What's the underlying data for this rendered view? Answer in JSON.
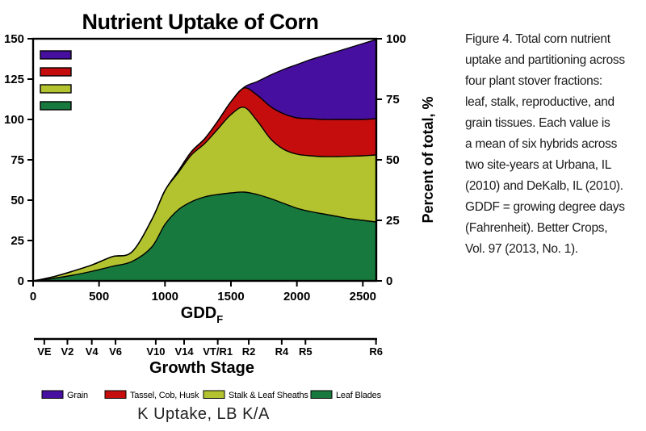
{
  "caption": {
    "text": "Figure 4. Total corn nutrient\nuptake and partitioning across\nfour plant stover fractions:\nleaf, stalk, reproductive, and\ngrain tissues.  Each value is\na mean of six hybrids across\ntwo site-years at Urbana, IL\n(2010) and DeKalb, IL (2010).\nGDDF = growing degree days\n(Fahrenheit).  Better Crops,\nVol. 97 (2013, No. 1)."
  },
  "chart_data": {
    "type": "area",
    "stacked": true,
    "title": "Nutrient Uptake of Corn",
    "xlabel": "GDD",
    "xlabel_sub": "F",
    "ylabel_right": "Percent of total, %",
    "bottom_label": "K Uptake, LB K/A",
    "xlim": [
      0,
      2600
    ],
    "ylim_left": [
      0,
      150
    ],
    "ylim_right": [
      0,
      100
    ],
    "x_ticks": [
      0,
      500,
      1000,
      1500,
      2000,
      2500
    ],
    "y_ticks_left": [
      0,
      25,
      50,
      75,
      100,
      125,
      150
    ],
    "y_ticks_right": [
      0,
      25,
      50,
      75,
      100
    ],
    "x": [
      0,
      150,
      300,
      450,
      600,
      750,
      900,
      1000,
      1100,
      1200,
      1300,
      1400,
      1500,
      1600,
      1700,
      1800,
      1900,
      2000,
      2100,
      2200,
      2300,
      2400,
      2500,
      2600
    ],
    "series": [
      {
        "name": "Leaf Blades",
        "color": "#17793e",
        "values": [
          0,
          1.5,
          3.5,
          6,
          9,
          12,
          21,
          35,
          44,
          49,
          52,
          53.5,
          54.5,
          55,
          53.5,
          51,
          48,
          45,
          43,
          41.5,
          40,
          38.5,
          37.5,
          36.5
        ]
      },
      {
        "name": "Stalk & Leaf Sheaths",
        "color": "#b2c32f",
        "values": [
          0,
          1,
          2.5,
          4,
          6,
          6,
          17,
          21,
          23,
          29,
          33,
          40.5,
          48.5,
          52.5,
          45.5,
          37,
          33.5,
          33.5,
          34.5,
          35.5,
          37,
          38.7,
          40,
          41.5
        ]
      },
      {
        "name": "Tassel, Cob, Husk",
        "color": "#c50d0d",
        "values": [
          0,
          0,
          0,
          0,
          0,
          0,
          0,
          0,
          1,
          2,
          3,
          5,
          8,
          12,
          16,
          20,
          22,
          22.5,
          23,
          23,
          23,
          22.8,
          22.5,
          22.5
        ]
      },
      {
        "name": "Grain",
        "color": "#470f9f",
        "values": [
          0,
          0,
          0,
          0,
          0,
          0,
          0,
          0,
          0,
          0,
          0,
          0,
          0,
          0.5,
          8.5,
          19.5,
          27.5,
          33,
          36.5,
          39.5,
          42,
          44.5,
          47,
          49
        ]
      }
    ],
    "growth_stage_axis": {
      "label": "Growth Stage",
      "stages": [
        {
          "label": "VE",
          "gdd": 85
        },
        {
          "label": "V2",
          "gdd": 260
        },
        {
          "label": "V4",
          "gdd": 445
        },
        {
          "label": "V6",
          "gdd": 625
        },
        {
          "label": "V10",
          "gdd": 930
        },
        {
          "label": "V14",
          "gdd": 1145
        },
        {
          "label": "VT/R1",
          "gdd": 1400
        },
        {
          "label": "R2",
          "gdd": 1635
        },
        {
          "label": "R4",
          "gdd": 1885
        },
        {
          "label": "R5",
          "gdd": 2065
        },
        {
          "label": "R6",
          "gdd": 2600
        }
      ]
    },
    "legend": {
      "items": [
        {
          "label": "Grain",
          "color": "#470f9f"
        },
        {
          "label": "Tassel, Cob, Husk",
          "color": "#c50d0d"
        },
        {
          "label": "Stalk & Leaf Sheaths",
          "color": "#b2c32f"
        },
        {
          "label": "Leaf Blades",
          "color": "#17793e"
        }
      ]
    }
  }
}
